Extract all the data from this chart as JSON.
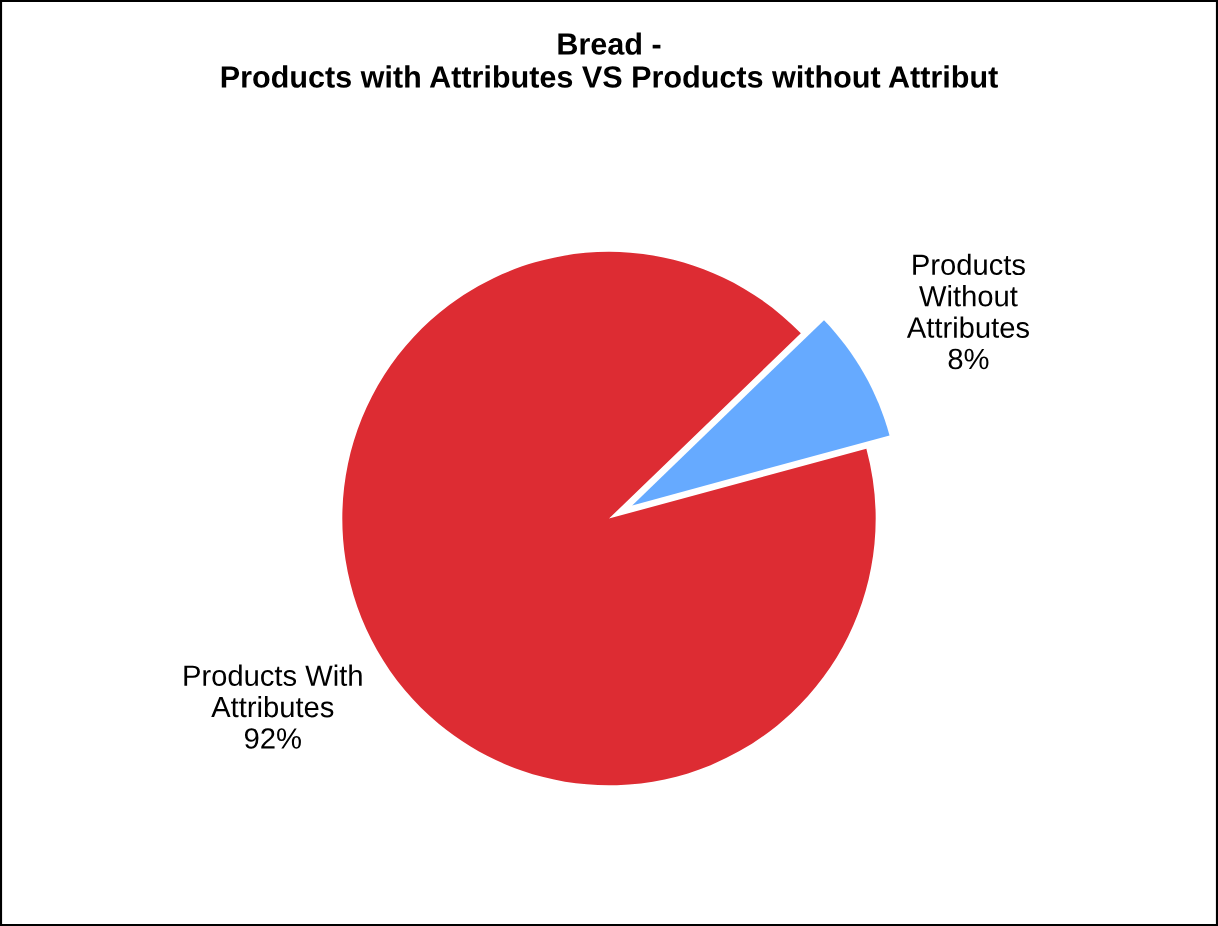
{
  "chart_data": {
    "type": "pie",
    "title": "Bread -\nProducts with Attributes VS Products without Attribut",
    "categories": [
      "Products With\nAttributes",
      "Products\nWithout\nAttributes"
    ],
    "values": [
      92,
      8
    ],
    "colors": [
      "#dd2c33",
      "#66aaff"
    ],
    "value_labels": [
      "92%",
      "8%"
    ],
    "legend": false
  }
}
